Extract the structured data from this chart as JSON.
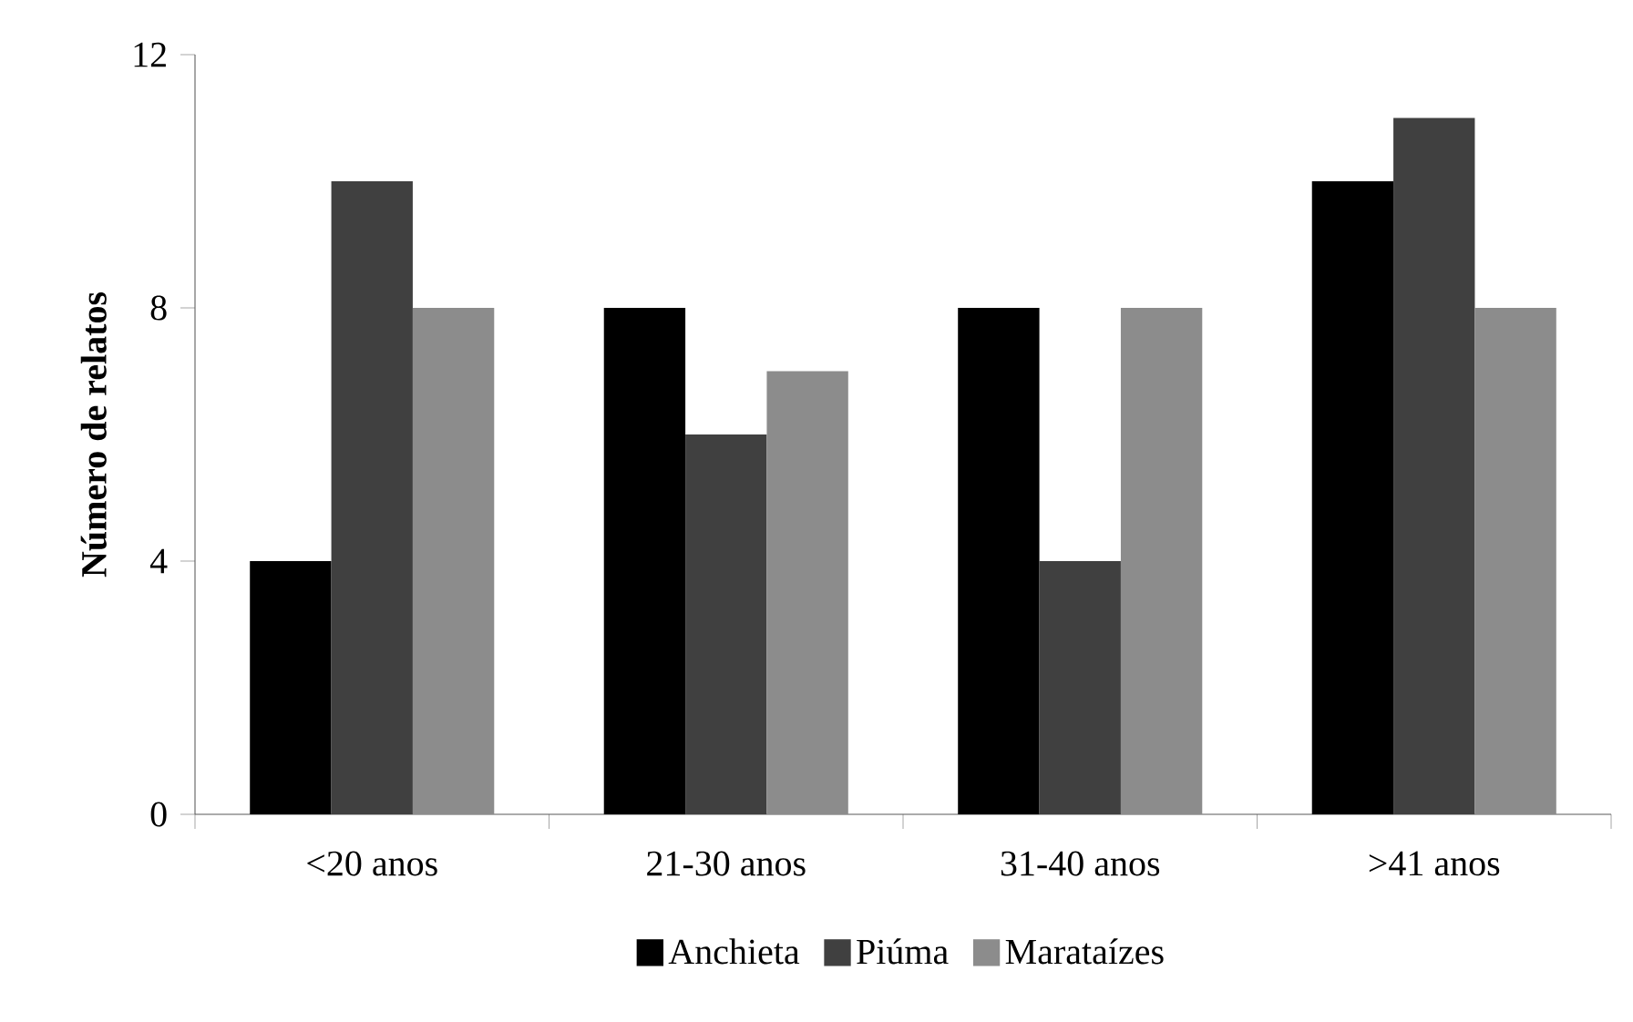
{
  "chart_data": {
    "type": "bar",
    "ylabel": "Número de relatos",
    "categories": [
      "<20 anos",
      "21-30 anos",
      "31-40 anos",
      ">41 anos"
    ],
    "series": [
      {
        "name": "Anchieta",
        "color": "#000000",
        "values": [
          4,
          8,
          8,
          10
        ]
      },
      {
        "name": "Piúma",
        "color": "#404040",
        "values": [
          10,
          6,
          4,
          11
        ]
      },
      {
        "name": "Marataízes",
        "color": "#8c8c8c",
        "values": [
          8,
          7,
          8,
          8
        ]
      }
    ],
    "ylim": [
      0,
      12
    ],
    "yticks": [
      0,
      4,
      8,
      12
    ],
    "grid": false,
    "legend": "bottom"
  }
}
